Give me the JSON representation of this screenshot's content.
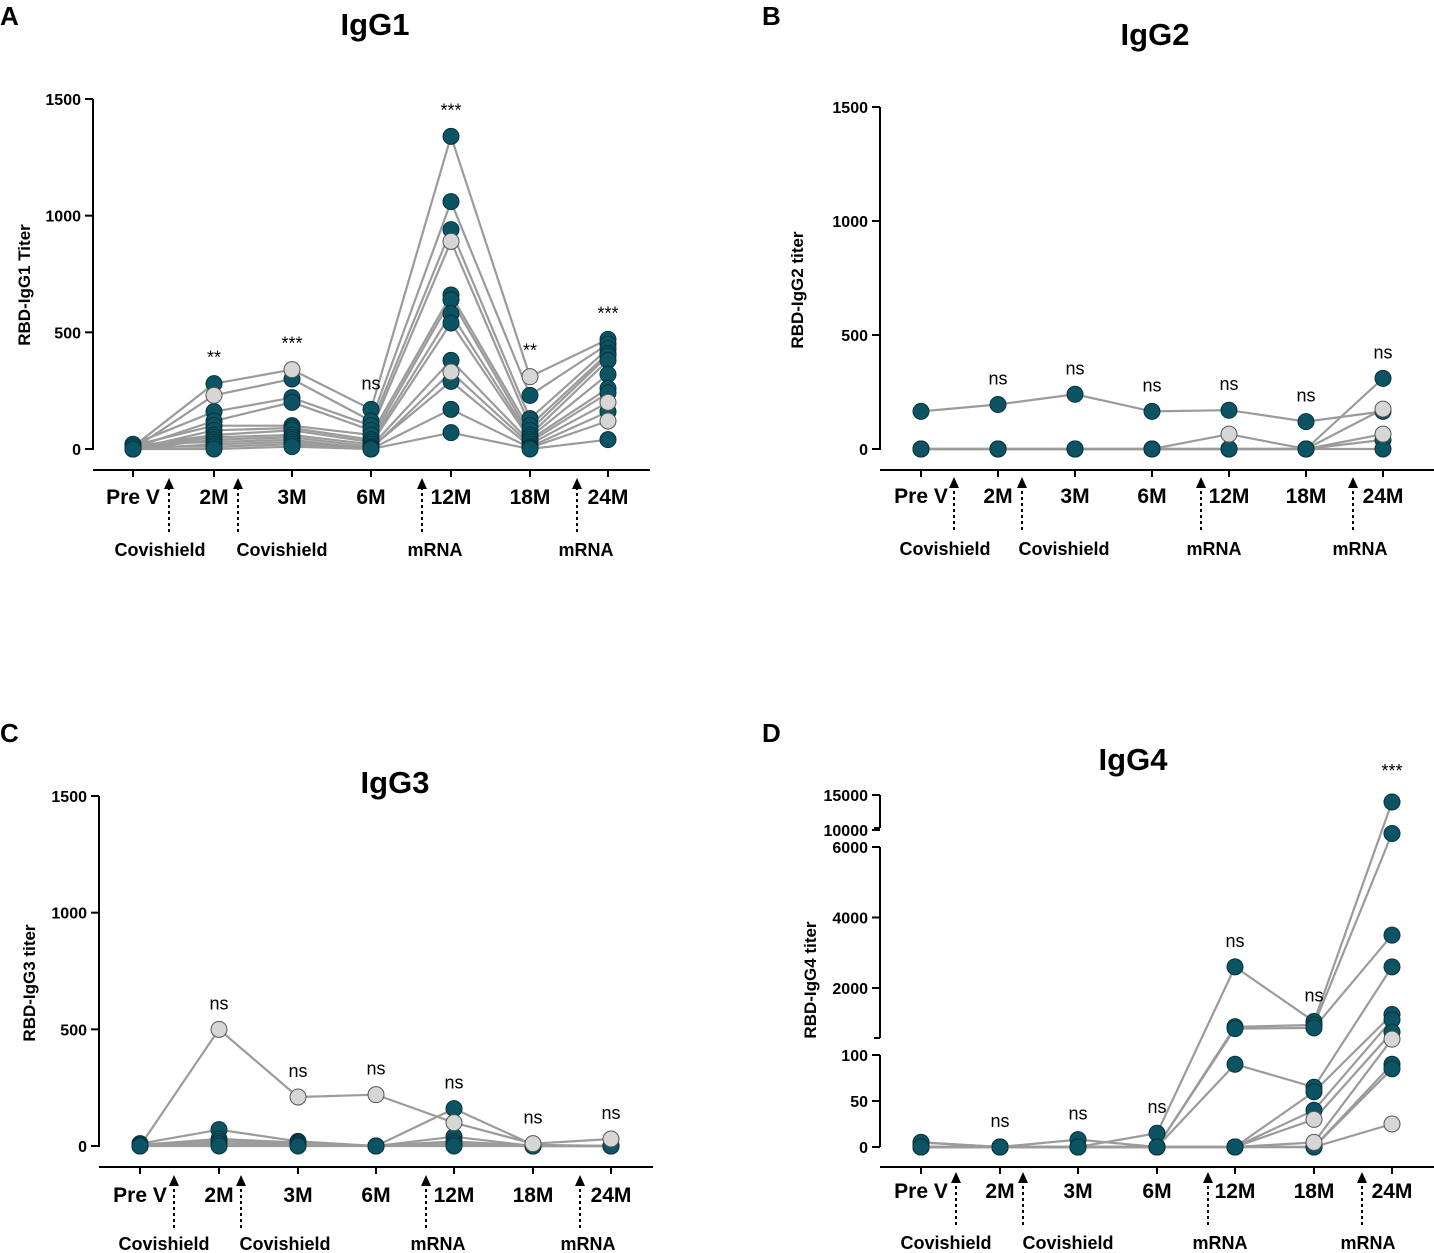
{
  "figure": {
    "colors": {
      "teal": "#0c5463",
      "gray_point": "#d6d6d6",
      "line": "#9b9b9b",
      "axis": "#000000"
    },
    "categories": [
      "Pre V",
      "2M",
      "3M",
      "6M",
      "12M",
      "18M",
      "24M"
    ],
    "vaccines": [
      {
        "label": "Covishield",
        "slot": 0.5
      },
      {
        "label": "Covishield",
        "slot": 1.5
      },
      {
        "label": "mRNA",
        "slot": 3.75
      },
      {
        "label": "mRNA",
        "slot": 5.75
      }
    ]
  },
  "chart_data": [
    {
      "letter": "A",
      "type": "scatter",
      "title": "IgG1",
      "ylabel": "RBD-IgG1 Titer",
      "xlabel": "",
      "ylim": [
        0,
        1500
      ],
      "yticks": [
        "0",
        "500",
        "1000",
        "1500"
      ],
      "categories": [
        "Pre V",
        "2M",
        "3M",
        "6M",
        "12M",
        "18M",
        "24M"
      ],
      "significance": [
        "",
        "**",
        "***",
        "ns",
        "***",
        "**",
        "***"
      ],
      "series": [
        {
          "name": "s1",
          "values": [
            10,
            280,
            340,
            170,
            1340,
            310,
            470
          ]
        },
        {
          "name": "s2",
          "values": [
            0,
            230,
            300,
            120,
            1060,
            230,
            450
          ]
        },
        {
          "name": "s3",
          "values": [
            20,
            160,
            220,
            100,
            940,
            130,
            430
          ]
        },
        {
          "name": "s4",
          "values": [
            5,
            120,
            200,
            80,
            890,
            100,
            410
          ]
        },
        {
          "name": "s5",
          "values": [
            15,
            100,
            100,
            60,
            660,
            80,
            400
          ]
        },
        {
          "name": "s6",
          "values": [
            0,
            80,
            90,
            40,
            640,
            60,
            380
          ]
        },
        {
          "name": "s7",
          "values": [
            10,
            60,
            80,
            30,
            580,
            50,
            320
          ]
        },
        {
          "name": "s8",
          "values": [
            5,
            50,
            60,
            20,
            540,
            40,
            260
          ]
        },
        {
          "name": "s9",
          "values": [
            0,
            40,
            50,
            10,
            380,
            30,
            240
          ]
        },
        {
          "name": "s10",
          "values": [
            20,
            30,
            40,
            0,
            330,
            20,
            200
          ]
        },
        {
          "name": "s11",
          "values": [
            0,
            20,
            30,
            5,
            290,
            10,
            160
          ]
        },
        {
          "name": "s12",
          "values": [
            10,
            10,
            20,
            0,
            170,
            5,
            120
          ]
        },
        {
          "name": "s13",
          "values": [
            0,
            0,
            10,
            0,
            70,
            0,
            40
          ]
        }
      ],
      "light_points": [
        {
          "cat": 1,
          "value": 230
        },
        {
          "cat": 2,
          "value": 340
        },
        {
          "cat": 4,
          "value": 890
        },
        {
          "cat": 4,
          "value": 330
        },
        {
          "cat": 5,
          "value": 310
        },
        {
          "cat": 6,
          "value": 120
        },
        {
          "cat": 6,
          "value": 200
        }
      ]
    },
    {
      "letter": "B",
      "type": "scatter",
      "title": "IgG2",
      "ylabel": "RBD-IgG2 titer",
      "xlabel": "",
      "ylim": [
        0,
        1500
      ],
      "yticks": [
        "0",
        "500",
        "1000",
        "1500"
      ],
      "categories": [
        "Pre V",
        "2M",
        "3M",
        "6M",
        "12M",
        "18M",
        "24M"
      ],
      "significance": [
        "",
        "ns",
        "ns",
        "ns",
        "ns",
        "ns",
        "ns"
      ],
      "series": [
        {
          "name": "s1",
          "values": [
            165,
            195,
            240,
            165,
            170,
            120,
            165
          ]
        },
        {
          "name": "s2",
          "values": [
            0,
            0,
            0,
            0,
            65,
            0,
            310
          ]
        },
        {
          "name": "s3",
          "values": [
            0,
            0,
            0,
            0,
            0,
            0,
            175
          ]
        },
        {
          "name": "s4",
          "values": [
            0,
            0,
            0,
            0,
            0,
            0,
            65
          ]
        },
        {
          "name": "s5",
          "values": [
            0,
            0,
            0,
            0,
            0,
            0,
            40
          ]
        },
        {
          "name": "s6",
          "values": [
            0,
            0,
            0,
            0,
            0,
            0,
            0
          ]
        }
      ],
      "light_points": [
        {
          "cat": 4,
          "value": 65
        },
        {
          "cat": 6,
          "value": 175
        },
        {
          "cat": 6,
          "value": 65
        }
      ]
    },
    {
      "letter": "C",
      "type": "scatter",
      "title": "IgG3",
      "ylabel": "RBD-IgG3 titer",
      "xlabel": "",
      "ylim": [
        0,
        1500
      ],
      "yticks": [
        "0",
        "500",
        "1000",
        "1500"
      ],
      "categories": [
        "Pre V",
        "2M",
        "3M",
        "6M",
        "12M",
        "18M",
        "24M"
      ],
      "significance": [
        "",
        "ns",
        "ns",
        "ns",
        "ns",
        "ns",
        "ns"
      ],
      "series": [
        {
          "name": "s1",
          "values": [
            0,
            500,
            210,
            220,
            100,
            10,
            30
          ]
        },
        {
          "name": "s2",
          "values": [
            10,
            70,
            20,
            0,
            160,
            5,
            0
          ]
        },
        {
          "name": "s3",
          "values": [
            5,
            30,
            15,
            0,
            40,
            0,
            0
          ]
        },
        {
          "name": "s4",
          "values": [
            0,
            20,
            10,
            0,
            20,
            0,
            0
          ]
        },
        {
          "name": "s5",
          "values": [
            0,
            10,
            5,
            0,
            10,
            0,
            0
          ]
        },
        {
          "name": "s6",
          "values": [
            0,
            0,
            0,
            0,
            0,
            0,
            0
          ]
        }
      ],
      "light_points": [
        {
          "cat": 1,
          "value": 500
        },
        {
          "cat": 2,
          "value": 210
        },
        {
          "cat": 3,
          "value": 220
        },
        {
          "cat": 4,
          "value": 100
        },
        {
          "cat": 5,
          "value": 10
        },
        {
          "cat": 6,
          "value": 30
        }
      ]
    },
    {
      "letter": "D",
      "type": "scatter",
      "title": "IgG4",
      "ylabel": "RBD-IgG4 titer",
      "xlabel": "",
      "axis_breaks": [
        [
          100,
          100
        ],
        [
          6000,
          10000
        ]
      ],
      "yticks": [
        "0",
        "50",
        "100",
        "2000",
        "4000",
        "6000",
        "10000",
        "15000"
      ],
      "categories": [
        "Pre V",
        "2M",
        "3M",
        "6M",
        "12M",
        "18M",
        "24M"
      ],
      "significance": [
        "",
        "ns",
        "ns",
        "ns",
        "ns",
        "ns",
        "***"
      ],
      "series": [
        {
          "name": "s1",
          "values": [
            5,
            0,
            0,
            15,
            2600,
            1050,
            14000
          ]
        },
        {
          "name": "s2",
          "values": [
            0,
            0,
            8,
            0,
            900,
            950,
            9500
          ]
        },
        {
          "name": "s3",
          "values": [
            5,
            0,
            0,
            0,
            850,
            870,
            3500
          ]
        },
        {
          "name": "s4",
          "values": [
            0,
            0,
            0,
            0,
            90,
            65,
            2600
          ]
        },
        {
          "name": "s5",
          "values": [
            0,
            0,
            0,
            0,
            0,
            60,
            1250
          ]
        },
        {
          "name": "s6",
          "values": [
            0,
            0,
            0,
            0,
            0,
            40,
            1100
          ]
        },
        {
          "name": "s7",
          "values": [
            0,
            0,
            0,
            0,
            0,
            30,
            750
          ]
        },
        {
          "name": "s8",
          "values": [
            0,
            0,
            0,
            0,
            0,
            5,
            550
          ]
        },
        {
          "name": "s9",
          "values": [
            0,
            0,
            0,
            0,
            0,
            0,
            90
          ]
        },
        {
          "name": "s10",
          "values": [
            0,
            0,
            0,
            0,
            0,
            0,
            85
          ]
        },
        {
          "name": "s11",
          "values": [
            0,
            0,
            0,
            0,
            0,
            0,
            25
          ]
        }
      ],
      "light_points": [
        {
          "cat": 5,
          "value": 30
        },
        {
          "cat": 5,
          "value": 5
        },
        {
          "cat": 6,
          "value": 550
        },
        {
          "cat": 6,
          "value": 25
        }
      ]
    }
  ]
}
